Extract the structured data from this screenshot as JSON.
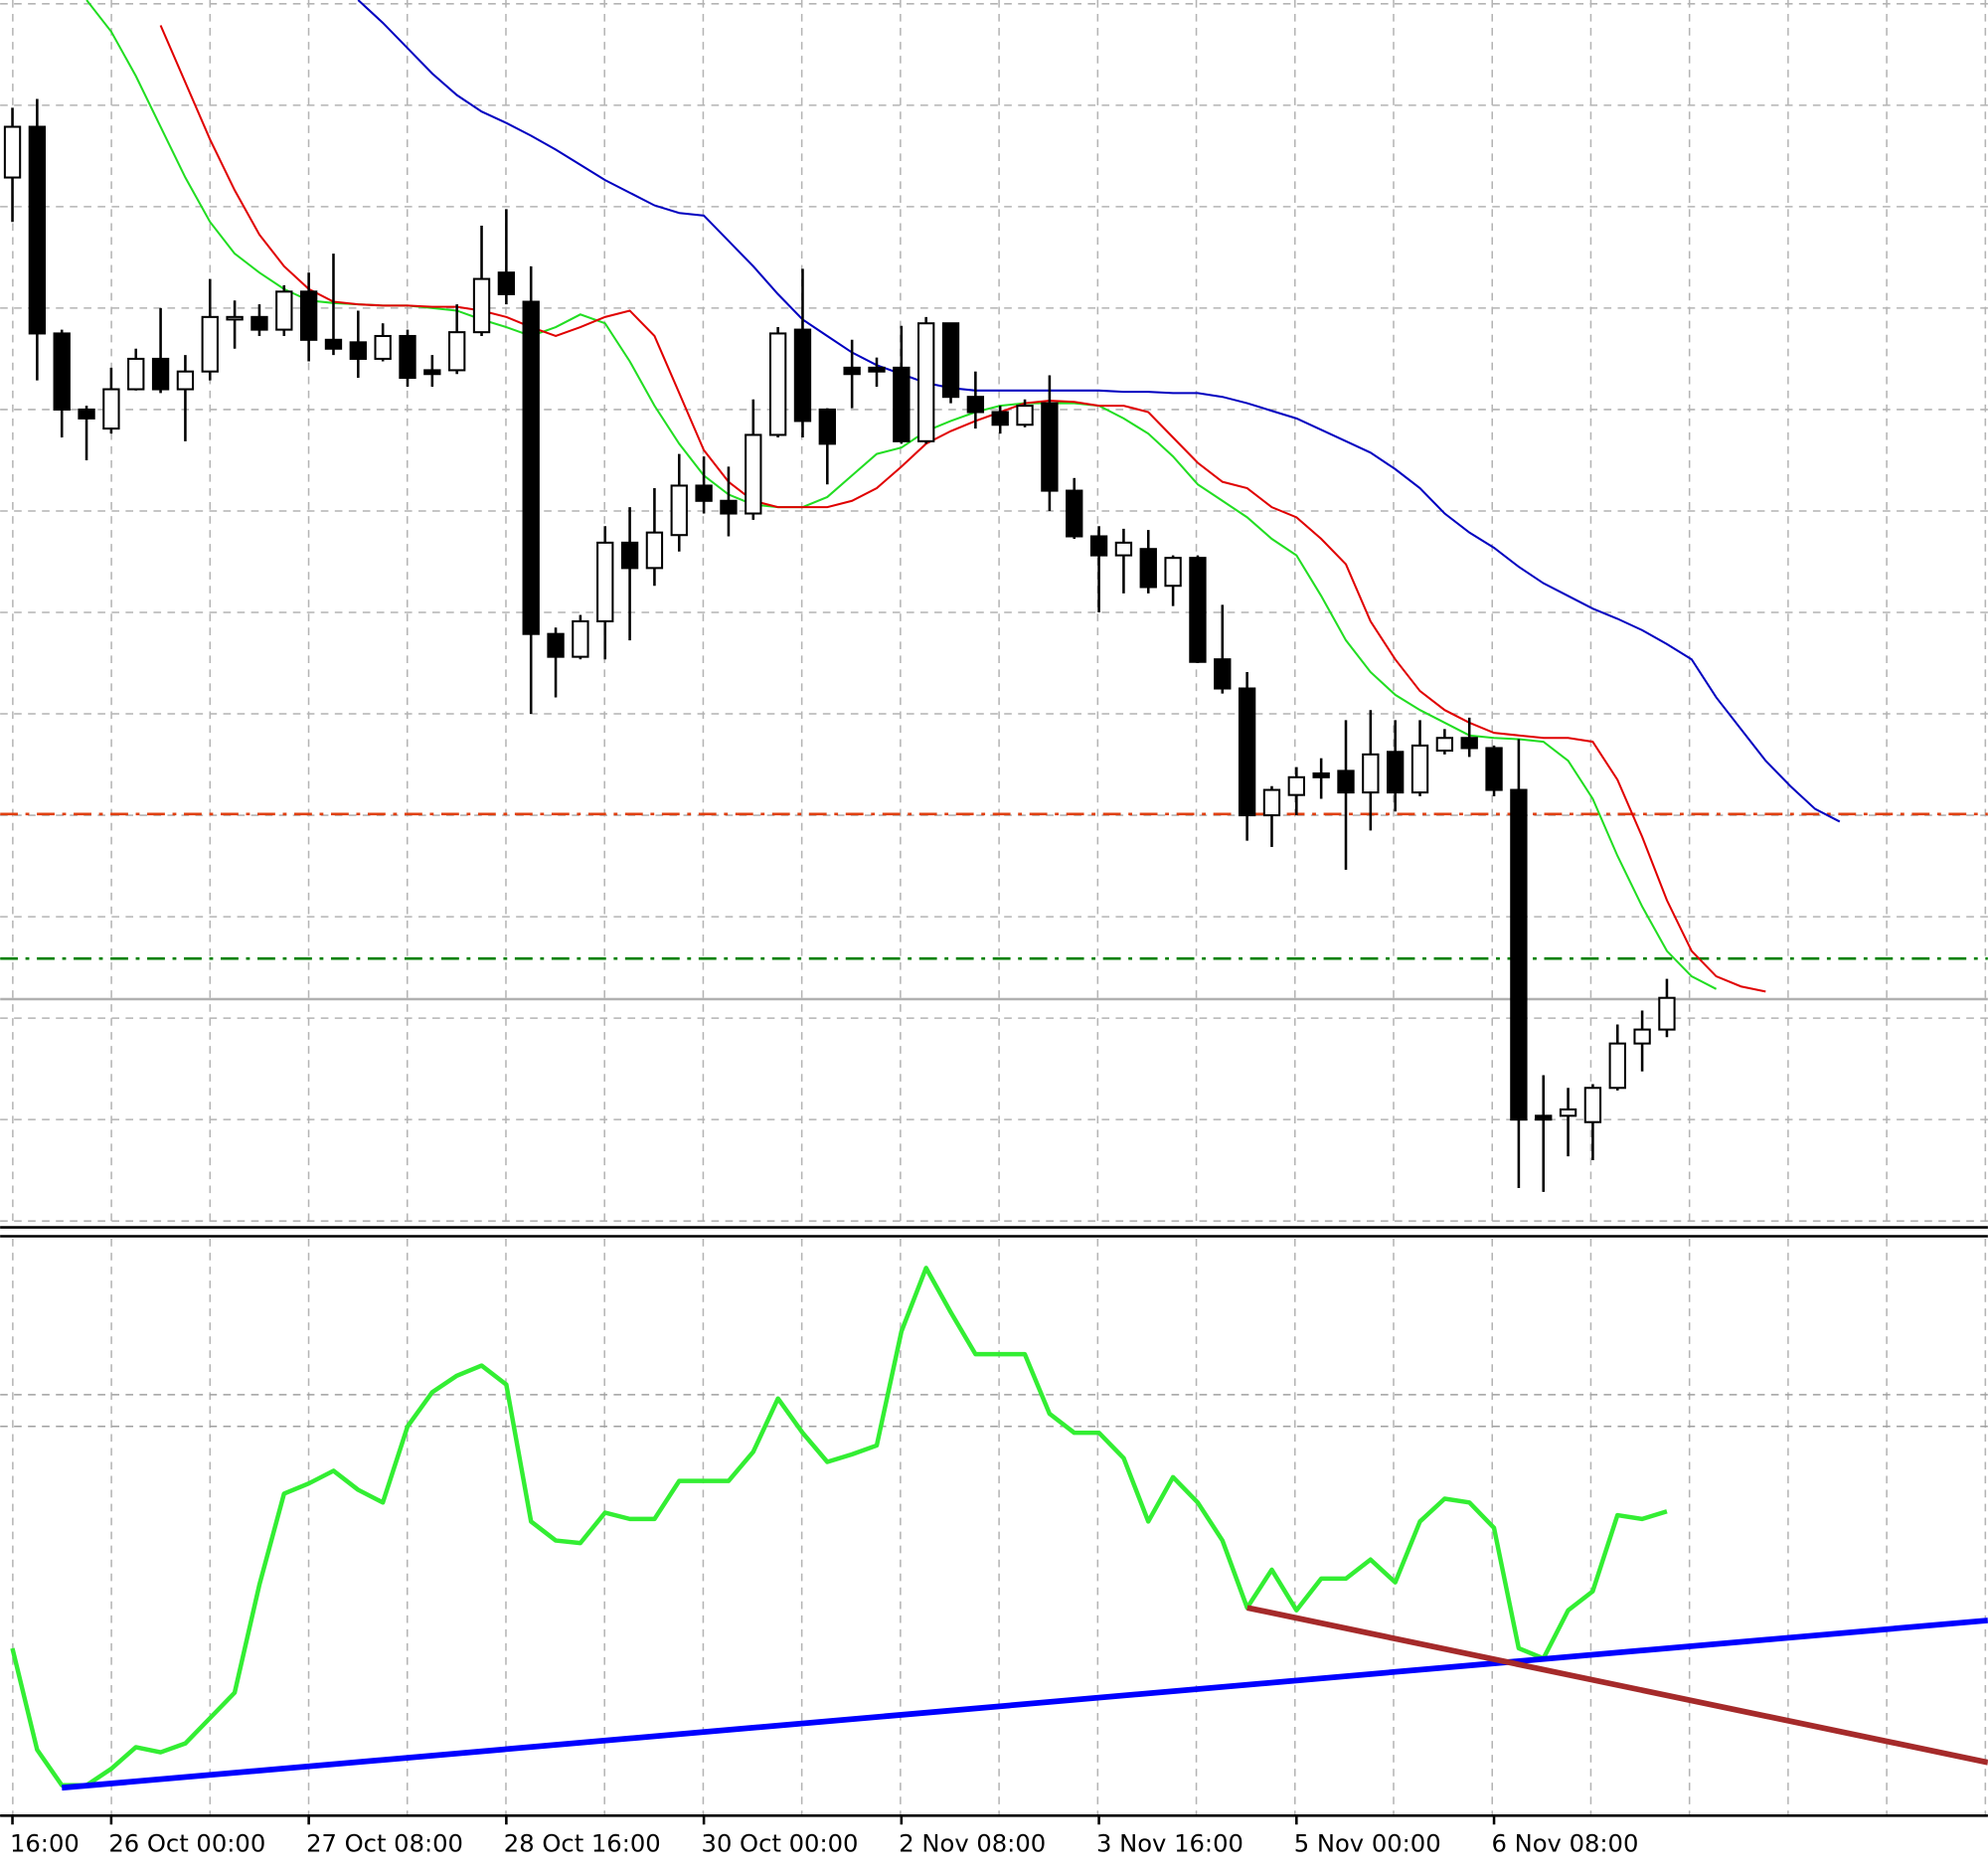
{
  "chart_data": [
    {
      "type": "candlestick",
      "xlim": [
        -0.5,
        80
      ],
      "ylim": [
        37,
        997
      ],
      "xticks": [
        {
          "value": 0,
          "label": "16:00"
        },
        {
          "value": 4,
          "label": "26 Oct 00:00"
        },
        {
          "value": 12,
          "label": "27 Oct 08:00"
        },
        {
          "value": 20,
          "label": "28 Oct 16:00"
        },
        {
          "value": 28,
          "label": "30 Oct 00:00"
        },
        {
          "value": 36,
          "label": "2 Nov 08:00"
        },
        {
          "value": 44,
          "label": "3 Nov 16:00"
        },
        {
          "value": 52,
          "label": "5 Nov 00:00"
        },
        {
          "value": 60,
          "label": "6 Nov 08:00"
        }
      ],
      "up_color": "#ffffff",
      "down_color": "#000000",
      "open": [
        860,
        900,
        737,
        677,
        662,
        693,
        717,
        693,
        707,
        748,
        750,
        740,
        770,
        732,
        730,
        717,
        735,
        708,
        708,
        738,
        785,
        762,
        500,
        482,
        510,
        572,
        552,
        578,
        617,
        605,
        595,
        657,
        740,
        677,
        710,
        710,
        710,
        652,
        745,
        687,
        675,
        665,
        682,
        613,
        577,
        562,
        567,
        538,
        560,
        480,
        457,
        357,
        373,
        390,
        392,
        375,
        407,
        375,
        408,
        418,
        410,
        377,
        120,
        120,
        115,
        142,
        177,
        188
      ],
      "high": [
        915,
        922,
        740,
        680,
        710,
        725,
        757,
        720,
        780,
        763,
        760,
        775,
        785,
        800,
        755,
        745,
        740,
        720,
        760,
        822,
        835,
        790,
        505,
        515,
        585,
        600,
        615,
        642,
        640,
        632,
        685,
        742,
        788,
        678,
        732,
        718,
        743,
        750,
        745,
        707,
        680,
        685,
        704,
        623,
        585,
        583,
        582,
        562,
        562,
        523,
        470,
        380,
        395,
        402,
        432,
        440,
        432,
        432,
        425,
        434,
        412,
        417,
        152,
        142,
        145,
        192,
        203,
        228
      ],
      "low": [
        825,
        700,
        655,
        637,
        658,
        692,
        690,
        652,
        700,
        725,
        735,
        735,
        715,
        720,
        702,
        715,
        695,
        695,
        705,
        735,
        760,
        437,
        450,
        480,
        480,
        495,
        538,
        565,
        595,
        577,
        590,
        655,
        655,
        618,
        678,
        695,
        650,
        650,
        682,
        662,
        658,
        663,
        597,
        575,
        517,
        532,
        532,
        522,
        477,
        453,
        337,
        332,
        357,
        370,
        314,
        345,
        360,
        372,
        405,
        403,
        372,
        63,
        60,
        88,
        85,
        140,
        155,
        182
      ],
      "close": [
        900,
        737,
        677,
        670,
        693,
        717,
        693,
        707,
        750,
        750,
        740,
        770,
        732,
        725,
        717,
        735,
        702,
        705,
        738,
        780,
        768,
        500,
        482,
        510,
        572,
        552,
        580,
        617,
        605,
        595,
        657,
        737,
        668,
        650,
        705,
        707,
        652,
        745,
        687,
        675,
        665,
        680,
        613,
        577,
        562,
        572,
        537,
        560,
        478,
        457,
        357,
        377,
        387,
        387,
        375,
        405,
        375,
        412,
        418,
        410,
        377,
        117,
        117,
        125,
        142,
        177,
        188,
        213
      ],
      "overlays": [
        {
          "color": "#22dd22",
          "x": [
            3,
            4,
            5,
            6,
            7,
            8,
            9,
            10,
            11,
            12,
            13,
            14,
            15,
            16,
            17,
            18,
            19,
            20,
            21,
            22,
            23,
            24,
            25,
            26,
            27,
            28,
            29,
            30,
            31,
            32,
            33,
            34,
            35,
            36,
            37,
            38,
            39,
            40,
            41,
            42,
            43,
            44,
            45,
            46,
            47,
            48,
            49,
            50,
            51,
            52,
            53,
            54,
            55,
            56,
            57,
            58,
            59,
            60,
            61,
            62,
            63,
            64,
            65,
            66,
            67,
            68,
            69
          ],
          "values": [
            1000,
            975,
            940,
            900,
            860,
            825,
            800,
            785,
            772,
            763,
            761,
            760,
            759,
            759,
            757,
            755,
            748,
            742,
            735,
            742,
            752,
            745,
            715,
            680,
            650,
            625,
            610,
            602,
            600,
            600,
            608,
            625,
            642,
            647,
            660,
            668,
            675,
            680,
            682,
            682,
            682,
            680,
            670,
            658,
            640,
            618,
            605,
            592,
            575,
            562,
            530,
            495,
            470,
            452,
            440,
            430,
            420,
            418,
            417,
            415,
            400,
            370,
            325,
            285,
            250,
            230,
            220
          ]
        },
        {
          "color": "#e00000",
          "x": [
            6,
            7,
            8,
            9,
            10,
            11,
            12,
            13,
            14,
            15,
            16,
            17,
            18,
            19,
            20,
            21,
            22,
            23,
            24,
            25,
            26,
            27,
            28,
            29,
            30,
            31,
            32,
            33,
            34,
            35,
            36,
            37,
            38,
            39,
            40,
            41,
            42,
            43,
            44,
            45,
            46,
            47,
            48,
            49,
            50,
            51,
            52,
            53,
            54,
            55,
            56,
            57,
            58,
            59,
            60,
            61,
            62,
            63,
            64,
            65,
            66,
            67,
            68,
            69,
            70,
            71
          ],
          "values": [
            980,
            935,
            890,
            850,
            815,
            790,
            772,
            762,
            760,
            759,
            759,
            758,
            758,
            755,
            750,
            742,
            735,
            742,
            750,
            755,
            735,
            690,
            645,
            620,
            605,
            600,
            600,
            600,
            605,
            615,
            632,
            650,
            660,
            668,
            675,
            682,
            684,
            683,
            680,
            680,
            675,
            655,
            635,
            620,
            615,
            600,
            592,
            575,
            555,
            510,
            480,
            455,
            440,
            430,
            422,
            420,
            418,
            418,
            415,
            385,
            340,
            290,
            250,
            230,
            222,
            218
          ]
        },
        {
          "color": "#0000c0",
          "x": [
            14,
            15,
            16,
            17,
            18,
            19,
            20,
            21,
            22,
            23,
            24,
            25,
            26,
            27,
            28,
            29,
            30,
            31,
            32,
            33,
            34,
            35,
            36,
            37,
            38,
            39,
            40,
            41,
            42,
            43,
            44,
            45,
            46,
            47,
            48,
            49,
            50,
            51,
            52,
            53,
            54,
            55,
            56,
            57,
            58,
            59,
            60,
            61,
            62,
            63,
            64,
            65,
            66,
            67,
            68,
            69,
            70,
            71,
            72,
            73,
            74
          ],
          "values": [
            1000,
            982,
            962,
            942,
            925,
            912,
            903,
            893,
            882,
            870,
            858,
            848,
            838,
            832,
            830,
            810,
            790,
            768,
            748,
            735,
            722,
            712,
            705,
            698,
            694,
            692,
            692,
            692,
            692,
            692,
            692,
            691,
            691,
            690,
            690,
            687,
            682,
            676,
            670,
            661,
            652,
            643,
            630,
            615,
            595,
            580,
            568,
            553,
            540,
            530,
            520,
            512,
            503,
            492,
            480,
            450,
            425,
            400,
            380,
            362,
            352
          ]
        }
      ],
      "levels": [
        {
          "value": 358,
          "color": "#e04010",
          "style": "dashdot"
        },
        {
          "value": 244,
          "color": "#008000",
          "style": "dashdot"
        },
        {
          "value": 212,
          "color": "#b0b0b0",
          "style": "solid"
        }
      ]
    },
    {
      "type": "line",
      "xlim": [
        -0.5,
        80
      ],
      "ylim": [
        0,
        457
      ],
      "series": [
        {
          "color": "#33ee33",
          "x": [
            0,
            1,
            2,
            3,
            4,
            5,
            6,
            7,
            8,
            9,
            10,
            11,
            12,
            13,
            14,
            15,
            16,
            17,
            18,
            19,
            20,
            21,
            22,
            23,
            24,
            25,
            26,
            27,
            28,
            29,
            30,
            31,
            32,
            33,
            34,
            35,
            36,
            37,
            38,
            39,
            40,
            41,
            42,
            43,
            44,
            45,
            46,
            47,
            48,
            49,
            50,
            51,
            52,
            53,
            54,
            55,
            56,
            57,
            58,
            59,
            60,
            61,
            62,
            63,
            64,
            65,
            66,
            67
          ],
          "values": [
            132,
            52,
            24,
            24,
            37,
            54,
            50,
            57,
            77,
            97,
            182,
            254,
            262,
            272,
            257,
            247,
            307,
            334,
            347,
            355,
            340,
            232,
            217,
            215,
            239,
            234,
            234,
            264,
            264,
            264,
            287,
            329,
            302,
            279,
            285,
            292,
            382,
            432,
            397,
            364,
            364,
            364,
            317,
            302,
            302,
            282,
            232,
            267,
            247,
            217,
            164,
            194,
            162,
            187,
            187,
            202,
            184,
            232,
            250,
            247,
            227,
            132,
            124,
            162,
            177,
            237,
            234,
            240
          ]
        }
      ],
      "trendlines": [
        {
          "color": "#0000ff",
          "x": [
            2,
            80
          ],
          "values": [
            22,
            154
          ]
        },
        {
          "color": "#a52a2a",
          "x": [
            50,
            80
          ],
          "values": [
            164,
            42
          ]
        }
      ],
      "levels": [
        {
          "value": 332,
          "color": "#a0a0a0",
          "style": "dashed"
        },
        {
          "value": 307,
          "color": "#a0a0a0",
          "style": "dashed"
        }
      ]
    }
  ]
}
